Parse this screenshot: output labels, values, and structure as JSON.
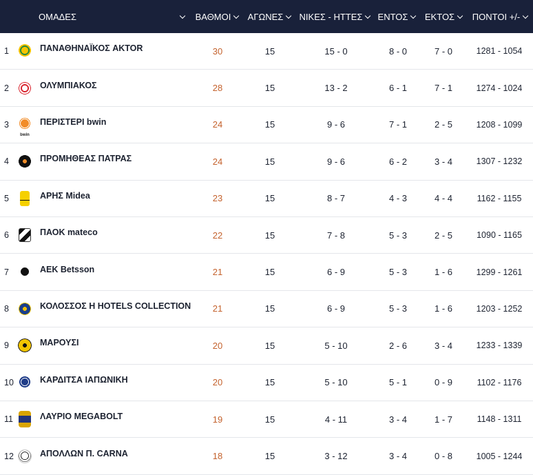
{
  "header": {
    "team": "ΟΜΑΔΕΣ",
    "points": "ΒΑΘΜΟΙ",
    "games": "ΑΓΩΝΕΣ",
    "wl": "ΝΙΚΕΣ - ΗΤΤΕΣ",
    "home": "ΕΝΤΟΣ",
    "away": "ΕΚΤΟΣ",
    "pf": "ΠΟΝΤΟΙ +/-"
  },
  "colors": {
    "header_bg": "#19213a",
    "points": "#c4622d"
  },
  "rows": [
    {
      "rank": "1",
      "logo": "panathinaikos-logo-icon",
      "logo_text": "",
      "team": "ΠΑΝΑΘΗΝΑΪΚΟΣ AKTOR",
      "points": "30",
      "games": "15",
      "wl": "15 - 0",
      "home": "8 - 0",
      "away": "7 - 0",
      "pf": "1281 - 1054"
    },
    {
      "rank": "2",
      "logo": "olympiakos-logo-icon",
      "logo_text": "",
      "team": "ΟΛΥΜΠΙΑΚΟΣ",
      "points": "28",
      "games": "15",
      "wl": "13 - 2",
      "home": "6 - 1",
      "away": "7 - 1",
      "pf": "1274 - 1024"
    },
    {
      "rank": "3",
      "logo": "peristeri-logo-icon",
      "logo_text": "bwin",
      "team": "ΠΕΡΙΣΤΕΡΙ bwin",
      "points": "24",
      "games": "15",
      "wl": "9 - 6",
      "home": "7 - 1",
      "away": "2 - 5",
      "pf": "1208 - 1099"
    },
    {
      "rank": "4",
      "logo": "promitheas-logo-icon",
      "logo_text": "",
      "team": "ΠΡΟΜΗΘΕΑΣ ΠΑΤΡΑΣ",
      "points": "24",
      "games": "15",
      "wl": "9 - 6",
      "home": "6 - 2",
      "away": "3 - 4",
      "pf": "1307 - 1232"
    },
    {
      "rank": "5",
      "logo": "aris-logo-icon",
      "logo_text": "",
      "team": "ΑΡΗΣ Midea",
      "points": "23",
      "games": "15",
      "wl": "8 - 7",
      "home": "4 - 3",
      "away": "4 - 4",
      "pf": "1162 - 1155"
    },
    {
      "rank": "6",
      "logo": "paok-logo-icon",
      "logo_text": "",
      "team": "ΠΑΟΚ mateco",
      "points": "22",
      "games": "15",
      "wl": "7 - 8",
      "home": "5 - 3",
      "away": "2 - 5",
      "pf": "1090 - 1165"
    },
    {
      "rank": "7",
      "logo": "aek-logo-icon",
      "logo_text": "",
      "team": "ΑΕΚ Betsson",
      "points": "21",
      "games": "15",
      "wl": "6 - 9",
      "home": "5 - 3",
      "away": "1 - 6",
      "pf": "1299 - 1261"
    },
    {
      "rank": "8",
      "logo": "kolossos-logo-icon",
      "logo_text": "",
      "team": "ΚΟΛΟΣΣΟΣ H HOTELS COLLECTION",
      "points": "21",
      "games": "15",
      "wl": "6 - 9",
      "home": "5 - 3",
      "away": "1 - 6",
      "pf": "1203 - 1252"
    },
    {
      "rank": "9",
      "logo": "marousi-logo-icon",
      "logo_text": "",
      "team": "ΜΑΡΟΥΣΙ",
      "points": "20",
      "games": "15",
      "wl": "5 - 10",
      "home": "2 - 6",
      "away": "3 - 4",
      "pf": "1233 - 1339"
    },
    {
      "rank": "10",
      "logo": "karditsa-logo-icon",
      "logo_text": "",
      "team": "ΚΑΡΔΙΤΣΑ ΙΑΠΩΝΙΚΗ",
      "points": "20",
      "games": "15",
      "wl": "5 - 10",
      "home": "5 - 1",
      "away": "0 - 9",
      "pf": "1102 - 1176"
    },
    {
      "rank": "11",
      "logo": "lavrio-logo-icon",
      "logo_text": "",
      "team": "ΛΑΥΡΙΟ MEGABOLT",
      "points": "19",
      "games": "15",
      "wl": "4 - 11",
      "home": "3 - 4",
      "away": "1 - 7",
      "pf": "1148 - 1311"
    },
    {
      "rank": "12",
      "logo": "apollon-logo-icon",
      "logo_text": "",
      "team": "ΑΠΟΛΛΩΝ Π. CARNA",
      "points": "18",
      "games": "15",
      "wl": "3 - 12",
      "home": "3 - 4",
      "away": "0 - 8",
      "pf": "1005 - 1244"
    }
  ]
}
